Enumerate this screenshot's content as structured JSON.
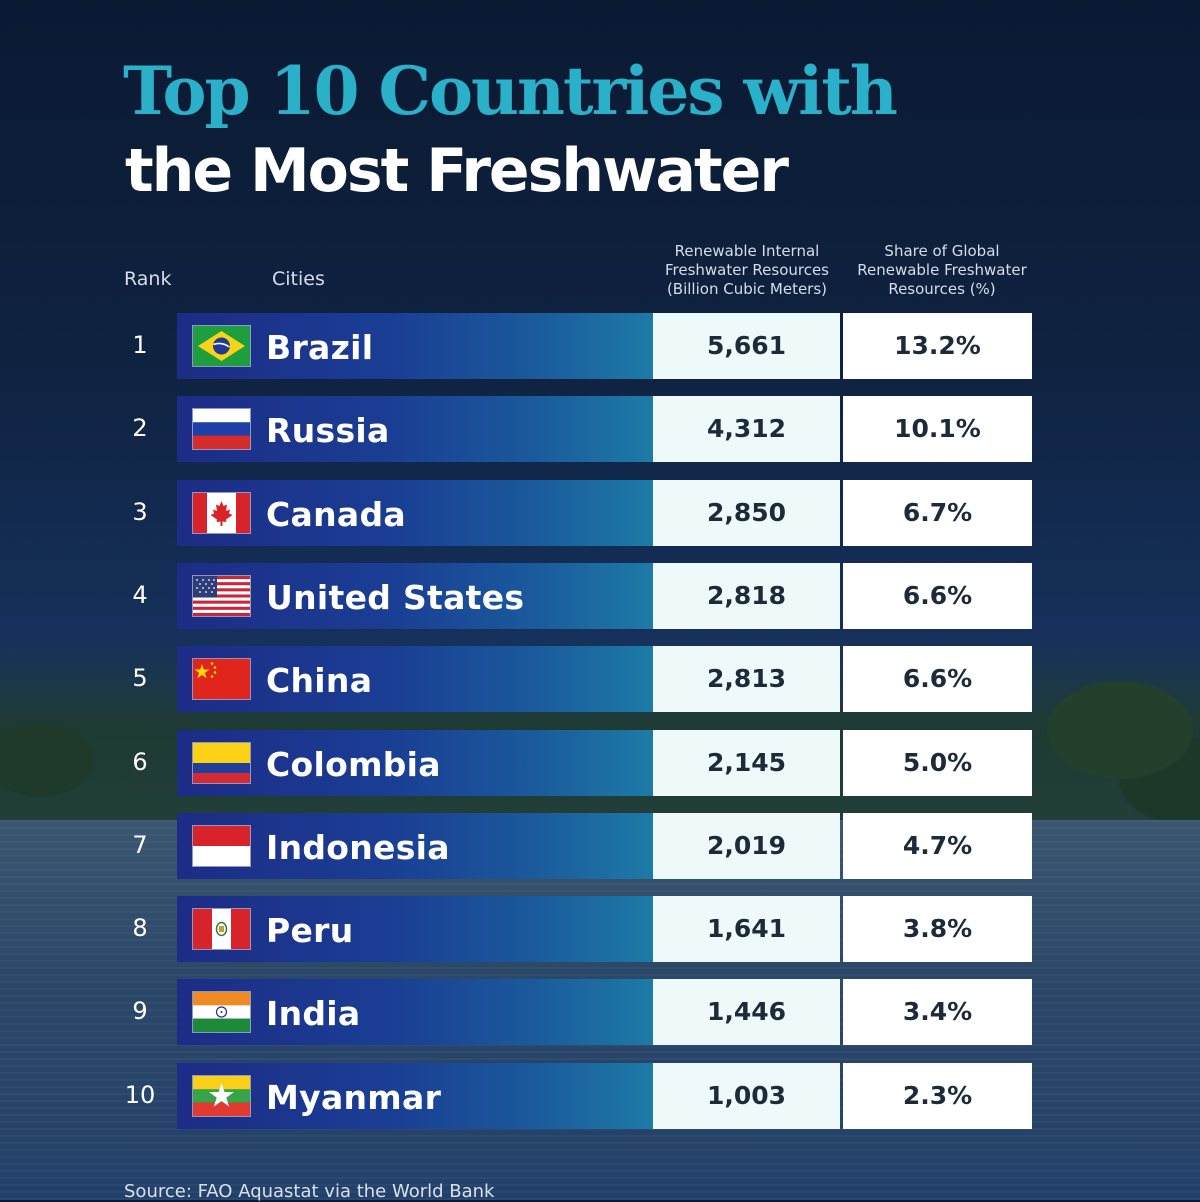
{
  "title_line1": "Top 10 Countries with",
  "title_line2": "the Most Freshwater",
  "headers": {
    "rank": "Rank",
    "cities": "Cities",
    "col1": [
      "Renewable Internal",
      "Freshwater Resources",
      "(Billion Cubic Meters)"
    ],
    "col2": [
      "Share of Global",
      "Renewable Freshwater",
      "Resources (%)"
    ]
  },
  "source": "Source: FAO Aquastat via the World Bank",
  "chart_data": {
    "type": "table",
    "columns": [
      "Rank",
      "Cities",
      "Renewable Internal Freshwater Resources (Billion Cubic Meters)",
      "Share of Global Renewable Freshwater Resources (%)"
    ],
    "rows": [
      {
        "rank": "1",
        "country": "Brazil",
        "flag": "brazil-flag-icon",
        "resources": "5,661",
        "share": "13.2%"
      },
      {
        "rank": "2",
        "country": "Russia",
        "flag": "russia-flag-icon",
        "resources": "4,312",
        "share": "10.1%"
      },
      {
        "rank": "3",
        "country": "Canada",
        "flag": "canada-flag-icon",
        "resources": "2,850",
        "share": "6.7%"
      },
      {
        "rank": "4",
        "country": "United States",
        "flag": "usa-flag-icon",
        "resources": "2,818",
        "share": "6.6%"
      },
      {
        "rank": "5",
        "country": "China",
        "flag": "china-flag-icon",
        "resources": "2,813",
        "share": "6.6%"
      },
      {
        "rank": "6",
        "country": "Colombia",
        "flag": "colombia-flag-icon",
        "resources": "2,145",
        "share": "5.0%"
      },
      {
        "rank": "7",
        "country": "Indonesia",
        "flag": "indonesia-flag-icon",
        "resources": "2,019",
        "share": "4.7%"
      },
      {
        "rank": "8",
        "country": "Peru",
        "flag": "peru-flag-icon",
        "resources": "1,641",
        "share": "3.8%"
      },
      {
        "rank": "9",
        "country": "India",
        "flag": "india-flag-icon",
        "resources": "1,446",
        "share": "3.4%"
      },
      {
        "rank": "10",
        "country": "Myanmar",
        "flag": "myanmar-flag-icon",
        "resources": "1,003",
        "share": "2.3%"
      }
    ]
  },
  "colors": {
    "title_accent": "#2ab0c8",
    "bar_start": "#1d2c86",
    "bar_end": "#1d7ba6",
    "cell_bg": "#ffffff"
  }
}
